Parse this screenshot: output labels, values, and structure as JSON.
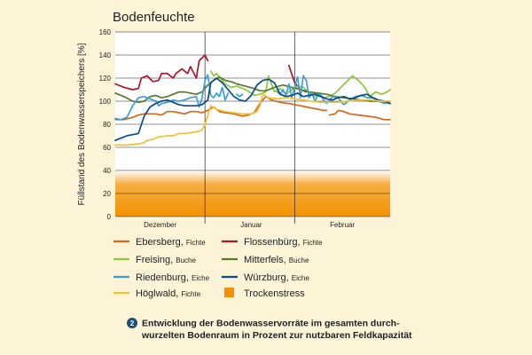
{
  "chart_data": {
    "type": "line",
    "title": "Bodenfeuchte",
    "xlabel": "",
    "ylabel": "Füllstand des Bodenwasserspeichers [%]",
    "ylim": [
      0,
      160
    ],
    "y_ticks": [
      "0",
      "20",
      "40",
      "60",
      "80",
      "100",
      "120",
      "140",
      "160"
    ],
    "x_domain": [
      0,
      95
    ],
    "month_labels": [
      {
        "label": "Dezember",
        "x": 15.5
      },
      {
        "label": "Januar",
        "x": 47
      },
      {
        "label": "Februar",
        "x": 78.5
      }
    ],
    "month_dividers": [
      31,
      62
    ],
    "grid": true,
    "stress_zone": {
      "label": "Trockenstress",
      "from": 0,
      "to": 40,
      "color": "#f39200"
    },
    "series": [
      {
        "name": "Ebersberg",
        "species": "Fichte",
        "color": "#d2691e",
        "points": [
          [
            0,
            84
          ],
          [
            3,
            84
          ],
          [
            6,
            86
          ],
          [
            8,
            88
          ],
          [
            10,
            89
          ],
          [
            14,
            89
          ],
          [
            16,
            88
          ],
          [
            18,
            91
          ],
          [
            20,
            91
          ],
          [
            22,
            90
          ],
          [
            24,
            89
          ],
          [
            26,
            91
          ],
          [
            28,
            91
          ],
          [
            30,
            90
          ],
          [
            32,
            92
          ],
          [
            34,
            95
          ],
          [
            36,
            91
          ],
          [
            38,
            90
          ],
          [
            41,
            89
          ],
          [
            44,
            87
          ],
          [
            46,
            88
          ],
          [
            48,
            90
          ],
          [
            50,
            98
          ],
          [
            52,
            104
          ],
          [
            54,
            101
          ],
          [
            57,
            99
          ],
          [
            60,
            98
          ],
          [
            62,
            97
          ],
          [
            64,
            96
          ],
          [
            66,
            95
          ],
          [
            68,
            94
          ],
          [
            70,
            93
          ],
          [
            72,
            92
          ],
          [
            73,
            92
          ],
          null,
          [
            74,
            88
          ],
          [
            76,
            89
          ],
          [
            77,
            92
          ],
          [
            79,
            91
          ],
          [
            81,
            89
          ],
          [
            84,
            88
          ],
          [
            87,
            87
          ],
          [
            90,
            86
          ],
          [
            93,
            84
          ],
          [
            95,
            84
          ]
        ]
      },
      {
        "name": "Flossenbürg",
        "species": "Fichte",
        "color": "#a8172a",
        "points": [
          [
            0,
            115
          ],
          [
            3,
            112
          ],
          [
            6,
            110
          ],
          [
            8,
            111
          ],
          [
            9,
            120
          ],
          [
            11,
            122
          ],
          [
            13,
            117
          ],
          [
            15,
            118
          ],
          [
            16,
            124
          ],
          [
            18,
            124
          ],
          [
            20,
            120
          ],
          [
            21,
            124
          ],
          [
            23,
            128
          ],
          [
            25,
            124
          ],
          [
            26,
            130
          ],
          [
            28,
            120
          ],
          [
            29,
            135
          ],
          [
            31,
            140
          ],
          [
            32,
            135
          ],
          null,
          [
            60,
            131
          ],
          [
            62,
            116
          ],
          [
            64,
            110
          ],
          [
            66,
            108
          ]
        ]
      },
      {
        "name": "Freising",
        "species": "Buche",
        "color": "#8dc63f",
        "points": [
          [
            33,
            126
          ],
          [
            34,
            122
          ],
          [
            35,
            124
          ],
          [
            36,
            121
          ],
          [
            37,
            118
          ],
          [
            38,
            115
          ],
          [
            40,
            112
          ],
          [
            42,
            113
          ],
          [
            45,
            110
          ],
          [
            47,
            107
          ],
          [
            48,
            105
          ],
          [
            50,
            106
          ],
          [
            52,
            108
          ],
          [
            53,
            122
          ],
          [
            55,
            108
          ],
          [
            57,
            111
          ],
          [
            59,
            106
          ],
          [
            61,
            110
          ],
          [
            63,
            113
          ],
          [
            65,
            112
          ],
          [
            67,
            107
          ],
          [
            69,
            104
          ],
          [
            70,
            107
          ],
          [
            72,
            103
          ],
          [
            74,
            104
          ],
          [
            76,
            107
          ],
          [
            78,
            112
          ],
          [
            80,
            117
          ],
          [
            82,
            122
          ],
          [
            84,
            118
          ],
          [
            86,
            113
          ],
          [
            88,
            104
          ],
          [
            90,
            108
          ],
          [
            92,
            106
          ],
          [
            94,
            108
          ],
          [
            95,
            110
          ]
        ]
      },
      {
        "name": "Mitterfels",
        "species": "Buche",
        "color": "#5a7a2a",
        "points": [
          [
            0,
            107
          ],
          [
            3,
            104
          ],
          [
            6,
            100
          ],
          [
            8,
            99
          ],
          [
            10,
            100
          ],
          [
            12,
            104
          ],
          [
            14,
            105
          ],
          [
            16,
            103
          ],
          [
            18,
            104
          ],
          [
            20,
            106
          ],
          [
            22,
            108
          ],
          [
            24,
            108
          ],
          [
            26,
            107
          ],
          [
            28,
            106
          ],
          [
            30,
            108
          ],
          [
            32,
            114
          ],
          [
            34,
            118
          ],
          [
            36,
            121
          ],
          [
            38,
            118
          ],
          [
            40,
            117
          ],
          [
            42,
            115
          ],
          [
            45,
            113
          ],
          [
            48,
            111
          ],
          [
            50,
            109
          ],
          [
            52,
            109
          ],
          [
            55,
            112
          ],
          [
            58,
            114
          ],
          [
            61,
            112
          ],
          [
            64,
            110
          ],
          [
            67,
            108
          ],
          [
            70,
            107
          ],
          [
            73,
            106
          ],
          [
            76,
            104
          ],
          [
            79,
            103
          ],
          [
            82,
            102
          ],
          [
            85,
            101
          ],
          [
            88,
            100
          ],
          [
            91,
            100
          ],
          [
            95,
            98
          ]
        ]
      },
      {
        "name": "Riedenburg",
        "species": "Eiche",
        "color": "#3aa0dc",
        "points": [
          [
            0,
            85
          ],
          [
            2,
            84
          ],
          [
            4,
            86
          ],
          [
            6,
            96
          ],
          [
            8,
            103
          ],
          [
            10,
            104
          ],
          [
            12,
            102
          ],
          [
            14,
            100
          ],
          [
            15,
            96
          ],
          [
            16,
            98
          ],
          [
            18,
            99
          ],
          [
            20,
            101
          ],
          [
            22,
            100
          ],
          [
            24,
            101
          ],
          [
            26,
            103
          ],
          [
            28,
            104
          ],
          [
            29,
            95
          ],
          [
            30,
            103
          ],
          [
            31,
            118
          ],
          [
            32,
            123
          ],
          [
            33,
            105
          ],
          [
            34,
            103
          ],
          [
            35,
            107
          ],
          [
            36,
            104
          ],
          [
            37,
            112
          ],
          [
            38,
            101
          ],
          [
            39,
            107
          ],
          null,
          [
            42,
            106
          ],
          [
            43,
            104
          ],
          [
            44,
            106
          ],
          null,
          [
            56,
            108
          ],
          [
            57,
            106
          ],
          [
            58,
            110
          ],
          [
            59,
            105
          ],
          [
            60,
            115
          ],
          [
            61,
            103
          ],
          [
            62,
            112
          ],
          [
            63,
            121
          ],
          [
            64,
            103
          ],
          [
            65,
            122
          ],
          [
            66,
            118
          ],
          [
            67,
            103
          ],
          [
            68,
            107
          ],
          [
            69,
            100
          ],
          [
            70,
            105
          ],
          [
            71,
            106
          ],
          [
            72,
            101
          ],
          [
            73,
            98
          ],
          [
            74,
            100
          ],
          [
            75,
            104
          ],
          [
            77,
            103
          ],
          [
            79,
            97
          ],
          [
            81,
            101
          ],
          [
            83,
            104
          ],
          [
            85,
            105
          ],
          [
            87,
            103
          ],
          [
            89,
            103
          ],
          [
            91,
            100
          ],
          [
            93,
            98
          ],
          [
            95,
            100
          ]
        ]
      },
      {
        "name": "Würzburg",
        "species": "Eiche",
        "color": "#0b4a8c",
        "points": [
          [
            0,
            66
          ],
          [
            2,
            68
          ],
          [
            4,
            70
          ],
          [
            6,
            71
          ],
          [
            8,
            72
          ],
          [
            10,
            87
          ],
          [
            12,
            95
          ],
          [
            14,
            98
          ],
          [
            16,
            100
          ],
          [
            18,
            101
          ],
          [
            20,
            99
          ],
          [
            22,
            97
          ],
          [
            24,
            96
          ],
          [
            26,
            96
          ],
          [
            28,
            96
          ],
          [
            30,
            97
          ],
          [
            32,
            101
          ],
          [
            33,
            116
          ],
          [
            35,
            120
          ],
          [
            37,
            116
          ],
          [
            39,
            110
          ],
          [
            41,
            104
          ],
          [
            43,
            101
          ],
          [
            45,
            100
          ],
          [
            47,
            105
          ],
          [
            49,
            114
          ],
          [
            51,
            118
          ],
          [
            53,
            119
          ],
          [
            55,
            116
          ],
          [
            57,
            106
          ],
          [
            59,
            104
          ],
          [
            61,
            105
          ],
          [
            63,
            107
          ],
          [
            65,
            104
          ],
          [
            67,
            105
          ],
          [
            69,
            106
          ],
          [
            71,
            104
          ],
          [
            73,
            102
          ],
          [
            75,
            101
          ],
          [
            77,
            103
          ],
          [
            79,
            104
          ],
          [
            81,
            102
          ],
          [
            83,
            103
          ],
          [
            85,
            105
          ],
          [
            87,
            106
          ],
          [
            89,
            103
          ],
          [
            91,
            101
          ],
          [
            93,
            100
          ],
          [
            95,
            98
          ]
        ]
      },
      {
        "name": "Höglwald",
        "species": "Fichte",
        "color": "#f2c230",
        "points": [
          [
            0,
            62
          ],
          [
            4,
            62
          ],
          [
            8,
            63
          ],
          [
            10,
            64
          ],
          [
            11,
            66
          ],
          [
            13,
            67
          ],
          [
            15,
            69
          ],
          [
            18,
            70
          ],
          [
            20,
            70
          ],
          [
            22,
            72
          ],
          [
            24,
            72
          ],
          [
            27,
            73
          ],
          [
            29,
            74
          ],
          [
            30,
            75
          ],
          [
            31,
            80
          ],
          [
            32,
            88
          ],
          [
            33,
            96
          ],
          [
            35,
            93
          ],
          [
            38,
            91
          ],
          [
            41,
            90
          ],
          [
            44,
            89
          ],
          [
            47,
            89
          ],
          [
            49,
            91
          ],
          [
            50,
            96
          ],
          [
            51,
            106
          ],
          [
            53,
            103
          ],
          [
            56,
            102
          ],
          [
            59,
            103
          ],
          [
            62,
            102
          ],
          [
            65,
            101
          ],
          [
            68,
            100
          ],
          [
            71,
            99
          ],
          [
            74,
            99
          ],
          [
            77,
            99
          ],
          [
            80,
            100
          ],
          [
            84,
            101
          ],
          [
            88,
            101
          ],
          [
            92,
            100
          ],
          [
            95,
            100
          ]
        ]
      }
    ]
  },
  "legend": [
    {
      "name": "Ebersberg",
      "species": "Fichte"
    },
    {
      "name": "Flossenbürg",
      "species": "Fichte"
    },
    {
      "name": "Freising",
      "species": "Buche"
    },
    {
      "name": "Mitterfels",
      "species": "Buche"
    },
    {
      "name": "Riedenburg",
      "species": "Eiche"
    },
    {
      "name": "Würzburg",
      "species": "Eiche"
    },
    {
      "name": "Höglwald",
      "species": "Fichte"
    },
    {
      "name": "Trockenstress",
      "species": ""
    }
  ],
  "caption": {
    "number": "2",
    "line1": "Entwicklung der Bodenwasservorräte im gesamten durch-",
    "line2": "wurzelten Bodenraum in Prozent zur nutzbaren Feldkapazität"
  }
}
